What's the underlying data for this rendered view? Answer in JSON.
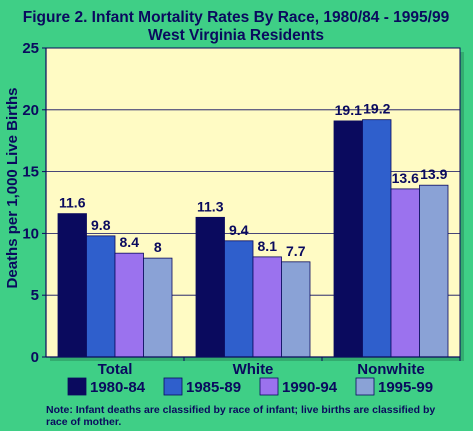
{
  "chart_data": {
    "type": "bar",
    "title": "Figure 2. Infant Mortality Rates By Race, 1980/84 - 1995/99",
    "subtitle": "West Virginia Residents",
    "ylabel": "Deaths per 1,000 Live Births",
    "xlabel": "",
    "ylim": [
      0,
      25
    ],
    "yticks": [
      0,
      5,
      10,
      15,
      20,
      25
    ],
    "categories": [
      "Total",
      "White",
      "Nonwhite"
    ],
    "series": [
      {
        "name": "1980-84",
        "values": [
          11.6,
          11.3,
          19.1
        ],
        "labels": [
          "11.6",
          "11.3",
          "19.1"
        ],
        "color": "#0a0a5e"
      },
      {
        "name": "1985-89",
        "values": [
          9.8,
          9.4,
          19.2
        ],
        "labels": [
          "9.8",
          "9.4",
          "19.2"
        ],
        "color": "#2f5fcc"
      },
      {
        "name": "1990-94",
        "values": [
          8.4,
          8.1,
          13.6
        ],
        "labels": [
          "8.4",
          "8.1",
          "13.6"
        ],
        "color": "#9b72ee"
      },
      {
        "name": "1995-99",
        "values": [
          8,
          7.7,
          13.9
        ],
        "labels": [
          "8",
          "7.7",
          "13.9"
        ],
        "color": "#8aa2d6"
      }
    ],
    "grid": true,
    "legend": "bottom",
    "plot_background": "#fffbc4",
    "page_background": "#3fcf86",
    "text_color": "#0a0a5e",
    "note": "Note: Infant deaths are classified by race of infant; live births are classified by race of mother."
  }
}
